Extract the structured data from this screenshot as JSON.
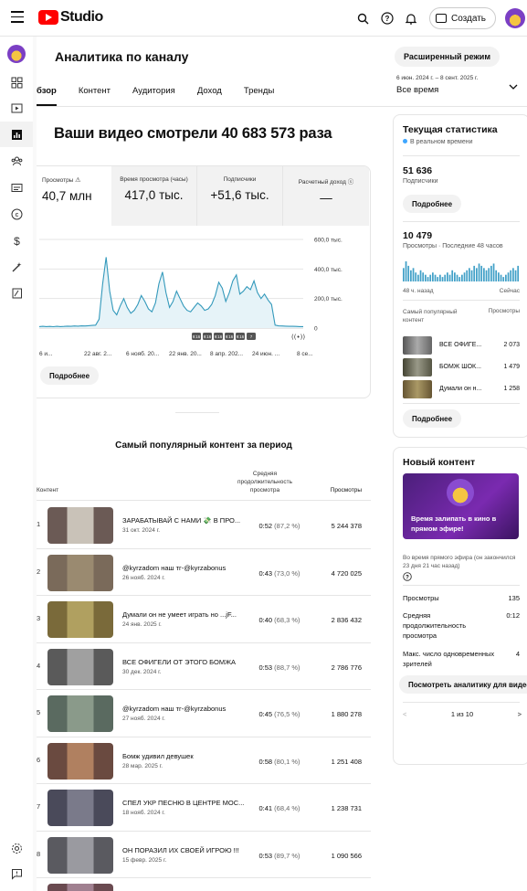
{
  "header": {
    "logo_text": "Studio",
    "create_label": "Создать",
    "icons": [
      "search-icon",
      "help-icon",
      "bell-icon",
      "create-video-icon"
    ]
  },
  "nav": {
    "items": [
      "dashboard-icon",
      "content-icon",
      "analytics-icon",
      "community-icon",
      "subtitles-icon",
      "copyright-icon",
      "earn-icon",
      "customization-icon",
      "audio-library-icon"
    ],
    "bottom": [
      "settings-icon",
      "feedback-icon"
    ]
  },
  "page": {
    "title": "Аналитика по каналу",
    "advanced_label": "Расширенный режим",
    "tabs": [
      "бзор",
      "Контент",
      "Аудитория",
      "Доход",
      "Тренды"
    ],
    "date_range": "6 июн. 2024 г. – 8 сент. 2025 г.",
    "period": "Все время",
    "headline": "Ваши видео смотрели 40 683 573 раза"
  },
  "metrics": [
    {
      "label": "Просмотры",
      "value": "40,7 млн"
    },
    {
      "label": "Время просмотра (часы)",
      "value": "417,0 тыс."
    },
    {
      "label": "Подписчики",
      "value": "+51,6 тыс."
    },
    {
      "label": "Расчетный доход",
      "value": "—"
    }
  ],
  "chart_data": {
    "type": "line",
    "x_ticks": [
      "6 и...",
      "22 авг. 2...",
      "6 нояб. 20...",
      "22 янв. 20...",
      "8 апр. 202...",
      "24 июн. ...",
      "8 се..."
    ],
    "y_ticks": [
      "600,0 тыс.",
      "400,0 тыс.",
      "200,0 тыс.",
      "0"
    ],
    "ylim": [
      0,
      600000
    ],
    "values": [
      10000,
      12000,
      10000,
      11000,
      9000,
      12000,
      10000,
      11000,
      13000,
      12000,
      14000,
      13000,
      15000,
      14000,
      16000,
      18000,
      20000,
      60000,
      300000,
      480000,
      250000,
      120000,
      90000,
      150000,
      200000,
      140000,
      100000,
      120000,
      160000,
      220000,
      180000,
      130000,
      110000,
      170000,
      300000,
      380000,
      240000,
      140000,
      180000,
      250000,
      200000,
      150000,
      120000,
      110000,
      140000,
      170000,
      150000,
      120000,
      130000,
      160000,
      220000,
      310000,
      270000,
      180000,
      240000,
      320000,
      360000,
      230000,
      250000,
      280000,
      260000,
      320000,
      240000,
      200000,
      230000,
      190000,
      160000,
      20000,
      15000,
      14000,
      13000,
      12000,
      12000,
      11000,
      10000,
      10000
    ]
  },
  "chart_badges": [
    "9:16",
    "9:16",
    "9:16",
    "9:16",
    "9:16",
    "7"
  ],
  "more_label": "Подробнее",
  "popular": {
    "title": "Самый популярный контент за период",
    "col_content": "Контент",
    "col_avg": "Средняя продолжительность просмотра",
    "col_views": "Просмотры",
    "rows": [
      {
        "num": "1",
        "title": "ЗАРАБАТЫВАЙ С НАМИ 💸 В ПРО...",
        "date": "31 окт. 2024 г.",
        "avg": "0:52",
        "pct": "(87,2 %)",
        "views": "5 244 378"
      },
      {
        "num": "2",
        "title": "@kyrzadom наш тг-@kyrzabonus",
        "date": "26 нояб. 2024 г.",
        "avg": "0:43",
        "pct": "(73,0 %)",
        "views": "4 720 025"
      },
      {
        "num": "3",
        "title": "Думали он не умеет играть но ...jF...",
        "date": "24 янв. 2025 г.",
        "avg": "0:40",
        "pct": "(68,3 %)",
        "views": "2 836 432"
      },
      {
        "num": "4",
        "title": "ВСЕ ОФИГЕЛИ ОТ ЭТОГО БОМЖА",
        "date": "30 дек. 2024 г.",
        "avg": "0:53",
        "pct": "(88,7 %)",
        "views": "2 786 776"
      },
      {
        "num": "5",
        "title": "@kyrzadom наш тг-@kyrzabonus",
        "date": "27 нояб. 2024 г.",
        "avg": "0:45",
        "pct": "(76,5 %)",
        "views": "1 880 278"
      },
      {
        "num": "6",
        "title": "Бомж удивил девушек",
        "date": "28 мар. 2025 г.",
        "avg": "0:58",
        "pct": "(80,1 %)",
        "views": "1 251 408"
      },
      {
        "num": "7",
        "title": "СПЕЛ УКР ПЕСНЮ В ЦЕНТРЕ МОС...",
        "date": "18 нояб. 2024 г.",
        "avg": "0:41",
        "pct": "(68,4 %)",
        "views": "1 238 731"
      },
      {
        "num": "8",
        "title": "ОН ПОРАЗИЛ ИХ СВОЕЙ ИГРОЮ !!!",
        "date": "15 февр. 2025 г.",
        "avg": "0:53",
        "pct": "(89,7 %)",
        "views": "1 090 566"
      }
    ]
  },
  "current": {
    "title": "Текущая статистика",
    "realtime": "В реальном времени",
    "subs_value": "51 636",
    "subs_label": "Подписчики",
    "more_label": "Подробнее",
    "views_value": "10 479",
    "views_label": "Просмотры · Последние 48 часов",
    "ago_label": "48 ч. назад",
    "now_label": "Сейчас",
    "top_content_label": "Самый популярный контент",
    "top_views_label": "Просмотры",
    "spark": [
      6,
      9,
      7,
      5,
      6,
      4,
      3,
      5,
      4,
      3,
      2,
      3,
      4,
      3,
      2,
      3,
      2,
      3,
      4,
      3,
      5,
      4,
      3,
      2,
      3,
      4,
      5,
      6,
      5,
      7,
      6,
      8,
      7,
      6,
      5,
      6,
      7,
      8,
      5,
      4,
      3,
      2,
      3,
      4,
      5,
      6,
      5,
      7
    ],
    "top": [
      {
        "label": "ВСЕ ОФИГЕ...",
        "views": "2 073"
      },
      {
        "label": "БОМЖ ШОК...",
        "views": "1 479"
      },
      {
        "label": "Думали он н...",
        "views": "1 258"
      }
    ]
  },
  "newcontent": {
    "title": "Новый контент",
    "thumb_text": "Время залипать в кино в прямом эфире!",
    "live_note": "Во время прямого эфира (он закончился 23 дня 21 час назад)",
    "rows": [
      {
        "label": "Просмотры",
        "value": "135"
      },
      {
        "label": "Средняя продолжительность просмотра",
        "value": "0:12"
      },
      {
        "label": "Макс. число одновременных зрителей",
        "value": "4"
      }
    ],
    "see_label": "Посмотреть аналитику для видео",
    "pager": "1 из 10"
  }
}
